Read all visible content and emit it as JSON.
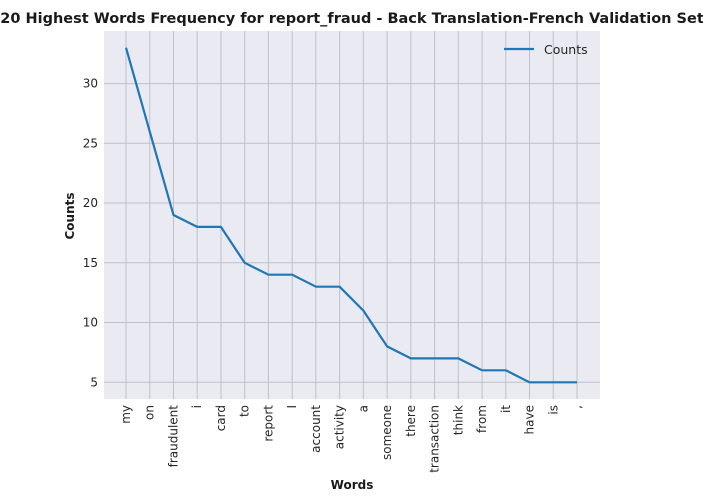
{
  "chart_data": {
    "type": "line",
    "title": "20 Highest Words Frequency for report_fraud - Back Translation-French Validation Set",
    "xlabel": "Words",
    "ylabel": "Counts",
    "categories": [
      "my",
      "on",
      "fraudulent",
      "i",
      "card",
      "to",
      "report",
      "I",
      "account",
      "activity",
      "a",
      "someone",
      "there",
      "transaction",
      "think",
      "from",
      "it",
      "have",
      "is",
      ","
    ],
    "series": [
      {
        "name": "Counts",
        "values": [
          33,
          26,
          19,
          18,
          18,
          15,
          14,
          14,
          13,
          13,
          11,
          8,
          7,
          7,
          7,
          6,
          6,
          5,
          5,
          5
        ],
        "color": "#1f77b4"
      }
    ],
    "yticks": [
      5,
      10,
      15,
      20,
      25,
      30
    ],
    "ylim": [
      3.6,
      34.4
    ],
    "grid": true,
    "legend": "top-right",
    "background": "#eaeaf2",
    "grid_color": "#c0c0c8"
  }
}
